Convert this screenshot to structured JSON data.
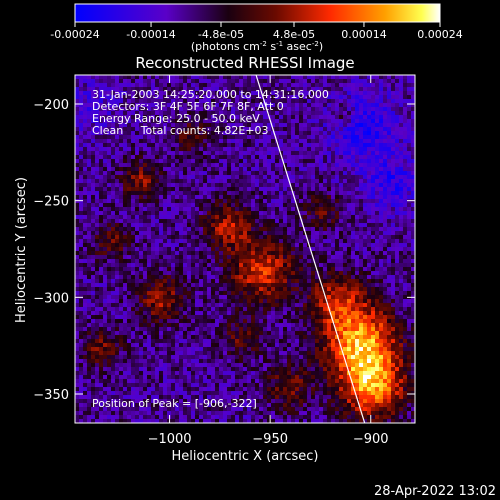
{
  "colorbar": {
    "ticks": [
      "-0.00024",
      "-0.00014",
      "-4.8e-05",
      "4.8e-05",
      "0.00014",
      "0.00024"
    ],
    "tick_values": [
      -0.00024,
      -0.00014,
      -4.8e-05,
      4.8e-05,
      0.00014,
      0.00024
    ],
    "range": [
      -0.00024,
      0.00024
    ],
    "unit_prefix": "(photons cm",
    "unit_exp1": "-2",
    "unit_mid1": " s",
    "unit_exp2": "-1",
    "unit_mid2": " asec",
    "unit_exp3": "-2",
    "unit_suffix": ")",
    "colors": [
      "#0000ff",
      "#5a00c8",
      "#1a0010",
      "#6a0a00",
      "#ff2a00",
      "#ffa000",
      "#ffff50",
      "#ffffff"
    ]
  },
  "chart_data": {
    "type": "heatmap",
    "title": "Reconstructed RHESSI Image",
    "xlabel": "Heliocentric X (arcsec)",
    "ylabel": "Heliocentric Y (arcsec)",
    "xlim": [
      -1047,
      -878
    ],
    "ylim": [
      -365,
      -185
    ],
    "x_ticks": [
      {
        "value": -1000,
        "label": "−1000"
      },
      {
        "value": -950,
        "label": "−950"
      },
      {
        "value": -900,
        "label": "−900"
      }
    ],
    "y_ticks": [
      {
        "value": -200,
        "label": "−200"
      },
      {
        "value": -250,
        "label": "−250"
      },
      {
        "value": -300,
        "label": "−300"
      },
      {
        "value": -350,
        "label": "−350"
      }
    ],
    "info_lines": [
      "31-Jan-2003 14:25:20.000 to 14:31:16.000",
      "Detectors: 3F 4F 5F 6F 7F 8F, Att 0",
      "Energy Range: 25.0 - 50.0 keV",
      "Clean     Total counts: 4.82E+03"
    ],
    "peak_text": "Position of Peak = [-906,-322]",
    "peak": [
      -906,
      -322
    ],
    "limb_line": [
      [
        -957,
        -185
      ],
      [
        -903,
        -365
      ]
    ]
  },
  "footer": {
    "timestamp": "28-Apr-2022 13:02"
  }
}
